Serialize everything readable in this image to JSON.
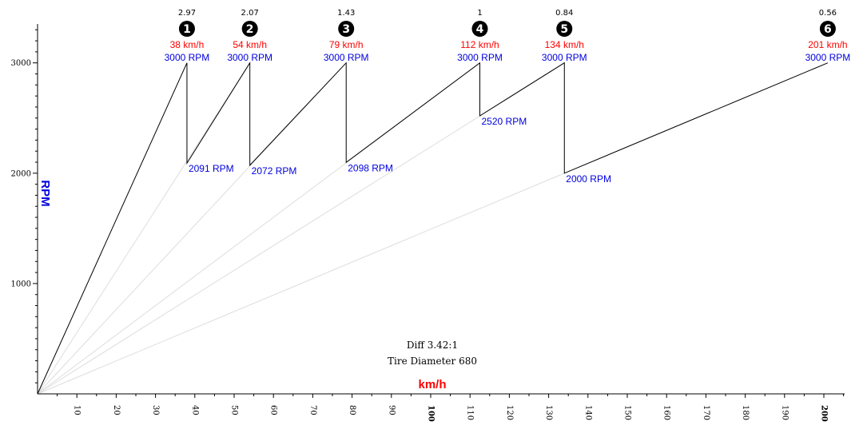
{
  "colors": {
    "speed": "#ff0000",
    "rpm": "#0000dd",
    "line": "#000000",
    "guide": "#dddddd"
  },
  "notes": {
    "diff": "Diff 3.42:1",
    "tire": "Tire Diameter 680"
  },
  "chart_data": {
    "type": "line",
    "xlabel": "km/h",
    "ylabel": "RPM",
    "xlim": [
      0,
      205
    ],
    "ylim": [
      0,
      3350
    ],
    "x_ticks": [
      10,
      20,
      30,
      40,
      50,
      60,
      70,
      80,
      90,
      100,
      110,
      120,
      130,
      140,
      150,
      160,
      170,
      180,
      190,
      200
    ],
    "x_tick_labels": [
      "10",
      "20",
      "30",
      "40",
      "50",
      "60",
      "70",
      "80",
      "90",
      "100",
      "110",
      "120",
      "130",
      "140",
      "150",
      "160",
      "170",
      "180",
      "190",
      "200"
    ],
    "y_ticks": [
      1000,
      2000,
      3000
    ],
    "y_tick_labels": [
      "1000",
      "2000",
      "3000"
    ],
    "shift_rpm": 3000,
    "gears": [
      {
        "gear": 1,
        "badge": "1",
        "ratio": "2.97",
        "speed": 38,
        "speed_label": "38 km/h",
        "shift_label": "3000 RPM",
        "drop_rpm": 2091,
        "drop_label": "2091 RPM"
      },
      {
        "gear": 2,
        "badge": "2",
        "ratio": "2.07",
        "speed": 54,
        "speed_label": "54 km/h",
        "shift_label": "3000 RPM",
        "drop_rpm": 2072,
        "drop_label": "2072 RPM"
      },
      {
        "gear": 3,
        "badge": "3",
        "ratio": "1.43",
        "speed": 78.5,
        "speed_label": "79 km/h",
        "shift_label": "3000 RPM",
        "drop_rpm": 2098,
        "drop_label": "2098 RPM"
      },
      {
        "gear": 4,
        "badge": "4",
        "ratio": "1",
        "speed": 112.5,
        "speed_label": "112 km/h",
        "shift_label": "3000 RPM",
        "drop_rpm": 2520,
        "drop_label": "2520 RPM"
      },
      {
        "gear": 5,
        "badge": "5",
        "ratio": "0.84",
        "speed": 134,
        "speed_label": "134 km/h",
        "shift_label": "3000 RPM",
        "drop_rpm": 2000,
        "drop_label": "2000 RPM"
      },
      {
        "gear": 6,
        "badge": "6",
        "ratio": "0.56",
        "speed": 201,
        "speed_label": "201 km/h",
        "shift_label": "3000 RPM"
      }
    ]
  }
}
